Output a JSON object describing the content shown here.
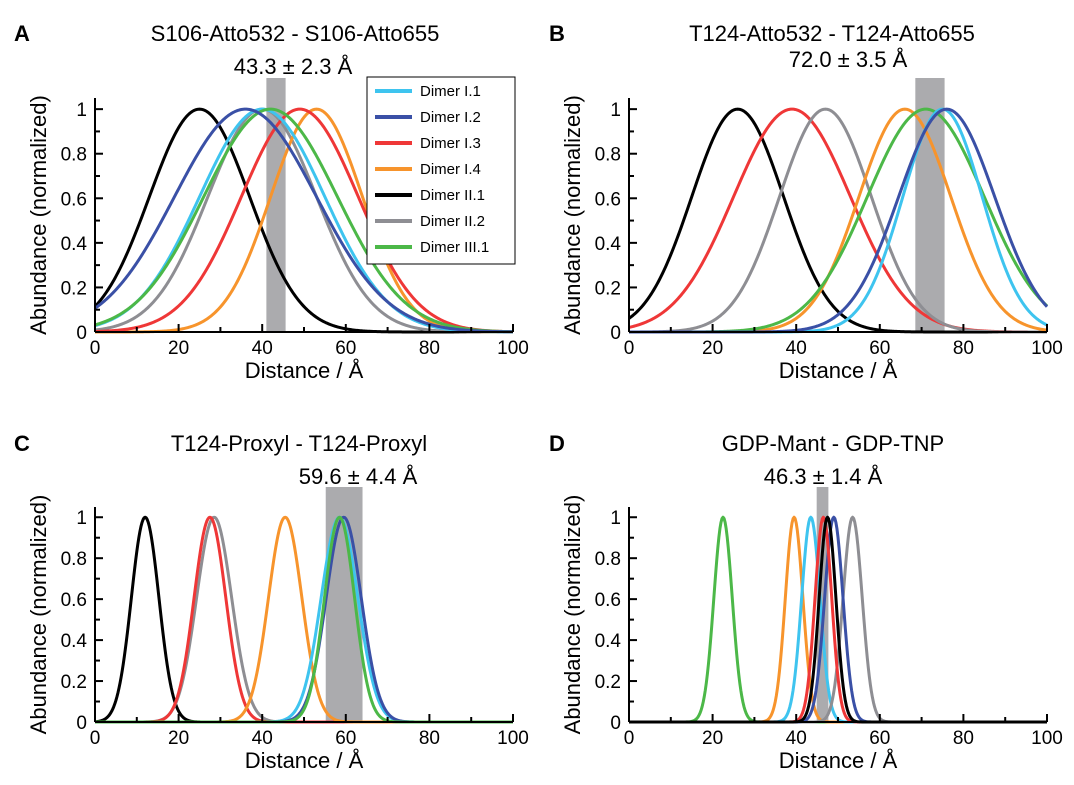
{
  "legend": [
    {
      "name": "Dimer I.1",
      "color": "#3ec4ef"
    },
    {
      "name": "Dimer I.2",
      "color": "#3a50a6"
    },
    {
      "name": "Dimer I.3",
      "color": "#ef3737"
    },
    {
      "name": "Dimer I.4",
      "color": "#f7942c"
    },
    {
      "name": "Dimer II.1",
      "color": "#000000"
    },
    {
      "name": "Dimer II.2",
      "color": "#8e8e93"
    },
    {
      "name": "Dimer III.1",
      "color": "#4cb848"
    }
  ],
  "chart_data": [
    {
      "type": "line",
      "panel": "A",
      "title": "S106-Atto532 - S106-Atto655",
      "annotation": "43.3 ± 2.3 Å",
      "band": {
        "center": 43.3,
        "halfwidth": 2.3
      },
      "xlabel": "Distance / Å",
      "ylabel": "Abundance (normalized)",
      "xlim": [
        0,
        100
      ],
      "ylim": [
        0,
        1.05
      ],
      "xticks": [
        0,
        20,
        40,
        60,
        80,
        100
      ],
      "yticks": [
        0,
        0.2,
        0.4,
        0.6,
        0.8,
        1
      ],
      "series": [
        {
          "name": "Dimer II.1",
          "color": "#000000",
          "center": 25,
          "sigma": 12
        },
        {
          "name": "Dimer II.2",
          "color": "#8e8e93",
          "center": 40,
          "sigma": 13
        },
        {
          "name": "Dimer I.4",
          "color": "#f7942c",
          "center": 53,
          "sigma": 11
        },
        {
          "name": "Dimer I.3",
          "color": "#ef3737",
          "center": 49,
          "sigma": 14
        },
        {
          "name": "Dimer I.1",
          "color": "#3ec4ef",
          "center": 40,
          "sigma": 15
        },
        {
          "name": "Dimer III.1",
          "color": "#4cb848",
          "center": 42,
          "sigma": 16
        },
        {
          "name": "Dimer I.2",
          "color": "#3a50a6",
          "center": 36,
          "sigma": 17
        }
      ]
    },
    {
      "type": "line",
      "panel": "B",
      "title": "T124-Atto532 - T124-Atto655",
      "annotation": "72.0 ± 3.5 Å",
      "band": {
        "center": 72.0,
        "halfwidth": 3.5
      },
      "xlabel": "Distance / Å",
      "ylabel": "Abundance (normalized)",
      "xlim": [
        0,
        100
      ],
      "ylim": [
        0,
        1.05
      ],
      "xticks": [
        0,
        20,
        40,
        60,
        80,
        100
      ],
      "yticks": [
        0,
        0.2,
        0.4,
        0.6,
        0.8,
        1
      ],
      "series": [
        {
          "name": "Dimer II.1",
          "color": "#000000",
          "center": 26,
          "sigma": 11
        },
        {
          "name": "Dimer I.3",
          "color": "#ef3737",
          "center": 39,
          "sigma": 14
        },
        {
          "name": "Dimer II.2",
          "color": "#8e8e93",
          "center": 47,
          "sigma": 11
        },
        {
          "name": "Dimer I.4",
          "color": "#f7942c",
          "center": 66,
          "sigma": 11
        },
        {
          "name": "Dimer III.1",
          "color": "#4cb848",
          "center": 71,
          "sigma": 14
        },
        {
          "name": "Dimer I.1",
          "color": "#3ec4ef",
          "center": 75,
          "sigma": 9.5
        },
        {
          "name": "Dimer I.2",
          "color": "#3a50a6",
          "center": 76,
          "sigma": 11.5
        }
      ]
    },
    {
      "type": "line",
      "panel": "C",
      "title": "T124-Proxyl - T124-Proxyl",
      "annotation": "59.6 ± 4.4 Å",
      "band": {
        "center": 59.6,
        "halfwidth": 4.4
      },
      "xlabel": "Distance / Å",
      "ylabel": "Abundance (normalized)",
      "xlim": [
        0,
        100
      ],
      "ylim": [
        0,
        1.05
      ],
      "xticks": [
        0,
        20,
        40,
        60,
        80,
        100
      ],
      "yticks": [
        0,
        0.2,
        0.4,
        0.6,
        0.8,
        1
      ],
      "series": [
        {
          "name": "Dimer II.1",
          "color": "#000000",
          "center": 12,
          "sigma": 3.3
        },
        {
          "name": "Dimer II.2",
          "color": "#8e8e93",
          "center": 28.5,
          "sigma": 4.2
        },
        {
          "name": "Dimer I.3",
          "color": "#ef3737",
          "center": 27.5,
          "sigma": 3.8
        },
        {
          "name": "Dimer I.4",
          "color": "#f7942c",
          "center": 45.5,
          "sigma": 4
        },
        {
          "name": "Dimer I.1",
          "color": "#3ec4ef",
          "center": 58.5,
          "sigma": 4.4
        },
        {
          "name": "Dimer I.2",
          "color": "#3a50a6",
          "center": 59.5,
          "sigma": 4.2
        },
        {
          "name": "Dimer III.1",
          "color": "#4cb848",
          "center": 58.5,
          "sigma": 3.6
        }
      ]
    },
    {
      "type": "line",
      "panel": "D",
      "title": "GDP-Mant - GDP-TNP",
      "annotation": "46.3 ± 1.4 Å",
      "band": {
        "center": 46.3,
        "halfwidth": 1.4
      },
      "xlabel": "Distance / Å",
      "ylabel": "Abundance (normalized)",
      "xlim": [
        0,
        100
      ],
      "ylim": [
        0,
        1.05
      ],
      "xticks": [
        0,
        20,
        40,
        60,
        80,
        100
      ],
      "yticks": [
        0,
        0.2,
        0.4,
        0.6,
        0.8,
        1
      ],
      "series": [
        {
          "name": "Dimer III.1",
          "color": "#4cb848",
          "center": 22.5,
          "sigma": 2.2
        },
        {
          "name": "Dimer I.4",
          "color": "#f7942c",
          "center": 39.5,
          "sigma": 2.1
        },
        {
          "name": "Dimer I.1",
          "color": "#3ec4ef",
          "center": 43.5,
          "sigma": 2.2
        },
        {
          "name": "Dimer II.2",
          "color": "#8e8e93",
          "center": 53.5,
          "sigma": 2.3
        },
        {
          "name": "Dimer I.2",
          "color": "#3a50a6",
          "center": 49,
          "sigma": 2.2
        },
        {
          "name": "Dimer I.3",
          "color": "#ef3737",
          "center": 46.5,
          "sigma": 2.0
        },
        {
          "name": "Dimer II.1",
          "color": "#000000",
          "center": 47.5,
          "sigma": 2.0
        }
      ]
    }
  ]
}
